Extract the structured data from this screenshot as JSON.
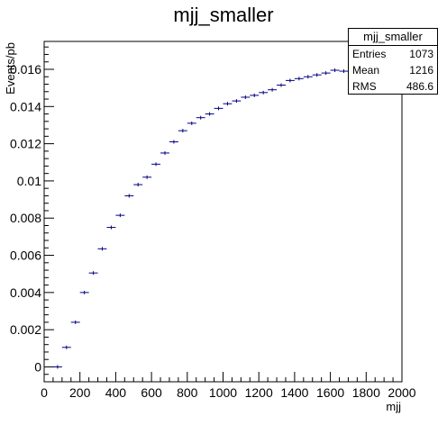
{
  "chart_data": {
    "type": "scatter",
    "title": "mjj_smaller",
    "xlabel": "mjj",
    "ylabel": "Events/pb",
    "xlim": [
      0,
      2000
    ],
    "ylim": [
      -0.0008,
      0.0175
    ],
    "x_ticks": [
      "0",
      "200",
      "400",
      "600",
      "800",
      "1000",
      "1200",
      "1400",
      "1600",
      "1800",
      "2000"
    ],
    "y_ticks": [
      "0",
      "0.002",
      "0.004",
      "0.006",
      "0.008",
      "0.01",
      "0.012",
      "0.014",
      "0.016"
    ],
    "bin_width": 50,
    "x": [
      75,
      125,
      175,
      225,
      275,
      325,
      375,
      425,
      475,
      525,
      575,
      625,
      675,
      725,
      775,
      825,
      875,
      925,
      975,
      1025,
      1075,
      1125,
      1175,
      1225,
      1275,
      1325,
      1375,
      1425,
      1475,
      1525,
      1575,
      1625,
      1675
    ],
    "values": [
      0.0,
      0.00105,
      0.0024,
      0.004,
      0.00505,
      0.00635,
      0.0075,
      0.00815,
      0.0092,
      0.0098,
      0.0102,
      0.0109,
      0.0115,
      0.0121,
      0.0127,
      0.0131,
      0.0134,
      0.0136,
      0.0139,
      0.01415,
      0.0143,
      0.0145,
      0.0146,
      0.01475,
      0.0149,
      0.01515,
      0.0154,
      0.0155,
      0.0156,
      0.0157,
      0.0158,
      0.01595,
      0.0159
    ],
    "series_color": "#00007f",
    "grid": false,
    "legend_position": "top-right"
  },
  "stats": {
    "title": "mjj_smaller",
    "rows": [
      {
        "label": "Entries",
        "value": "1073"
      },
      {
        "label": "Mean",
        "value": "1216"
      },
      {
        "label": "RMS",
        "value": "486.6"
      }
    ]
  }
}
